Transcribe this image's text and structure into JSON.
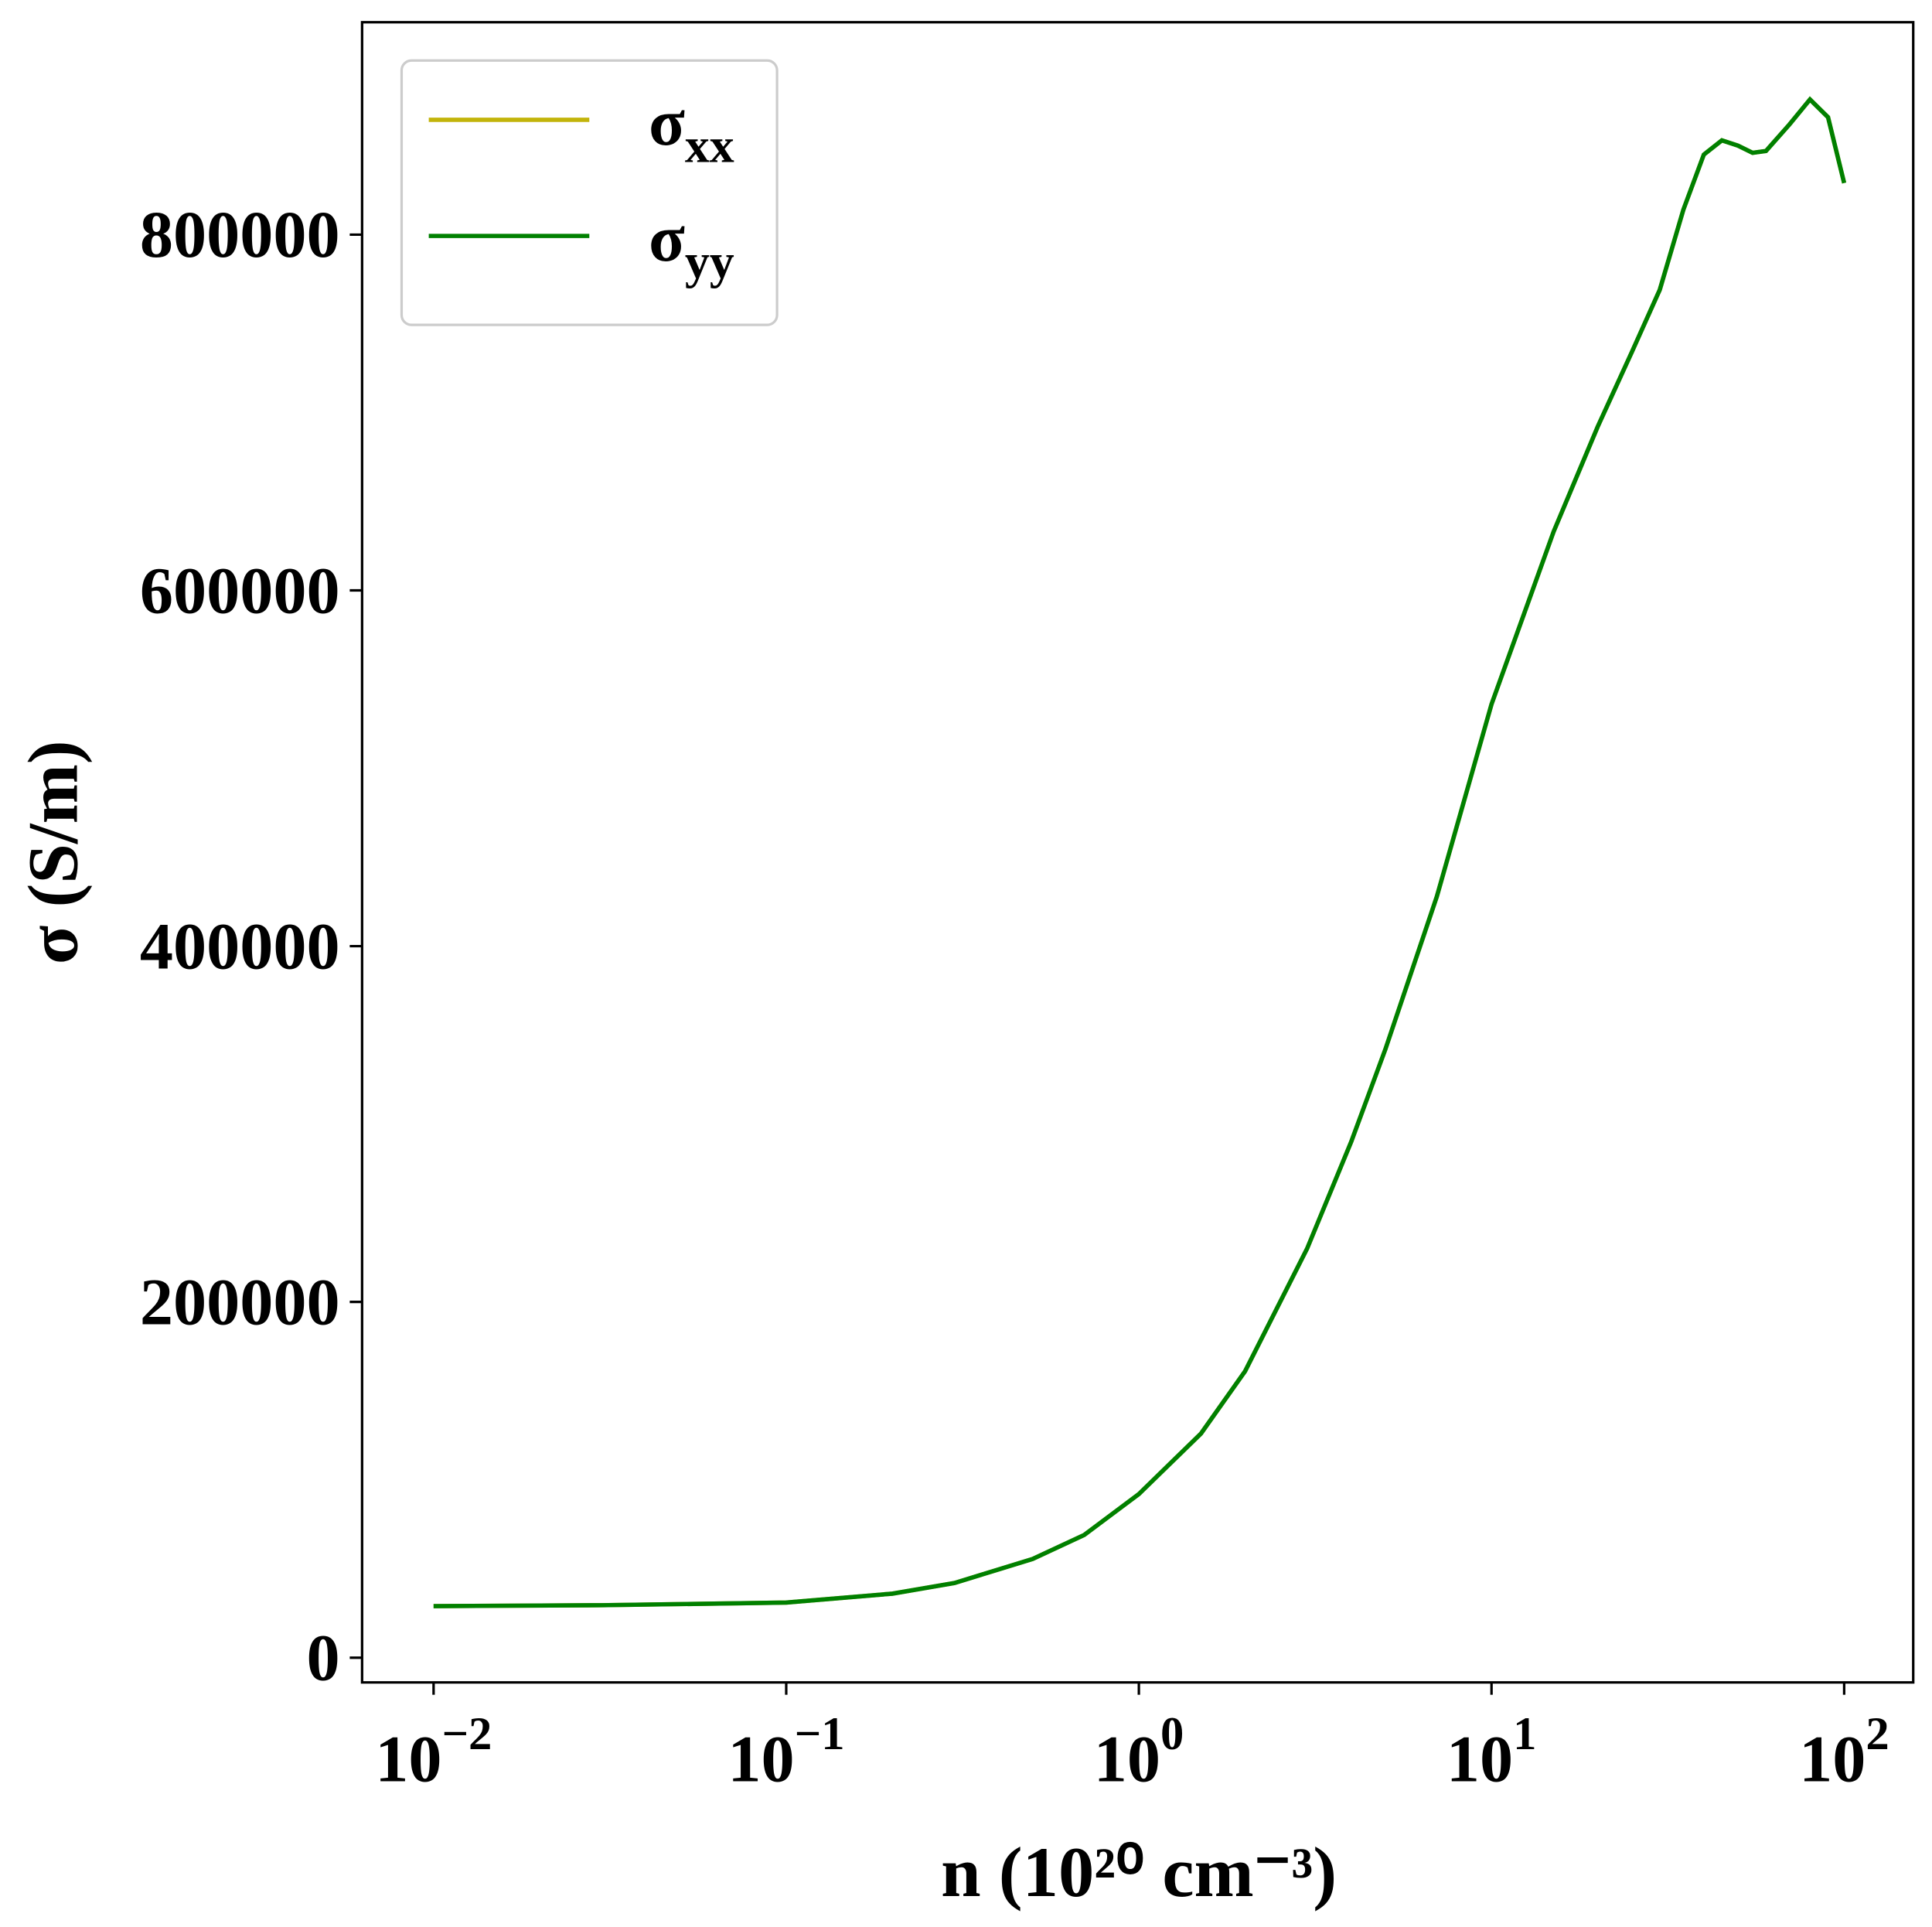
{
  "chart_data": {
    "type": "line",
    "x_label": "n (10²⁰ cm⁻³)",
    "y_label": "σ (S/m)",
    "log_x": true,
    "xlim": [
      0.00627,
      157
    ],
    "ylim": [
      -13900,
      919400
    ],
    "xticks": [
      {
        "value": 0.01,
        "label": "10−2"
      },
      {
        "value": 0.1,
        "label": "10−1"
      },
      {
        "value": 1,
        "label": "100"
      },
      {
        "value": 10,
        "label": "101"
      },
      {
        "value": 100,
        "label": "102"
      }
    ],
    "yticks": [
      0,
      200000,
      400000,
      600000,
      800000
    ],
    "legend": "upper left",
    "x": [
      0.01,
      0.03,
      0.1,
      0.2,
      0.3,
      0.5,
      0.7,
      1,
      1.5,
      2,
      3,
      4,
      5,
      7,
      10,
      15,
      20,
      25,
      30,
      35,
      40,
      45,
      50,
      55,
      60,
      70,
      80,
      90,
      100
    ],
    "series": [
      {
        "name": "σxx",
        "color": "#c2b40a",
        "values": [
          29000,
          29500,
          31000,
          36000,
          42000,
          55500,
          69000,
          92000,
          126000,
          161000,
          230000,
          290000,
          342000,
          428000,
          536000,
          633000,
          692000,
          734000,
          769000,
          814000,
          845000,
          853000,
          850000,
          846000,
          847000,
          862000,
          876000,
          866000,
          829000
        ]
      },
      {
        "name": "σyy",
        "color": "#008000",
        "values": [
          29000,
          29500,
          31000,
          36000,
          42000,
          55500,
          69000,
          92000,
          126000,
          161000,
          230000,
          290000,
          342000,
          428000,
          536000,
          633000,
          692000,
          734000,
          769000,
          814000,
          845000,
          853000,
          850000,
          846000,
          847000,
          862000,
          876000,
          866000,
          829000
        ]
      }
    ]
  }
}
